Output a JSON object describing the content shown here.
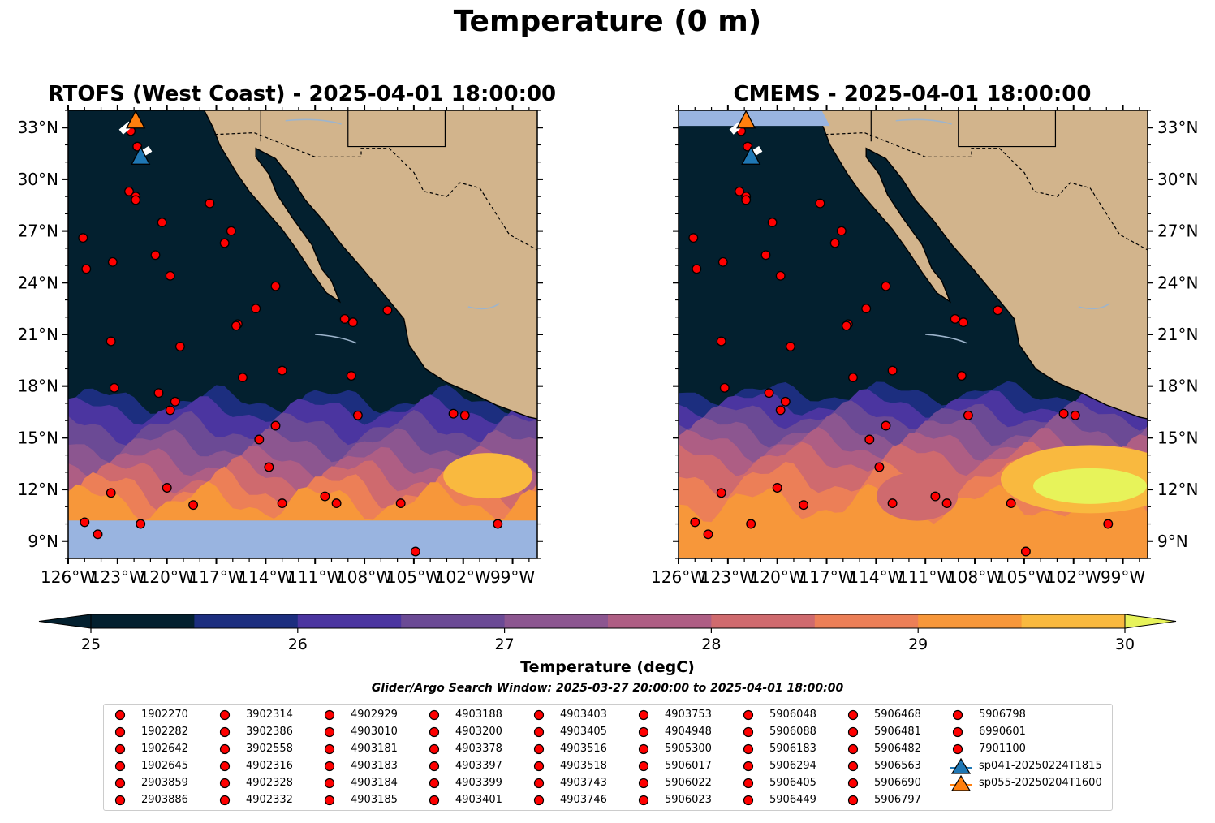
{
  "figure": {
    "title": "Temperature (0 m)",
    "panels": [
      {
        "title": "RTOFS (West Coast) - 2025-04-01 18:00:00"
      },
      {
        "title": "CMEMS - 2025-04-01 18:00:00"
      }
    ],
    "colorbar": {
      "label": "Temperature (degC)",
      "ticks": [
        "25",
        "26",
        "27",
        "28",
        "29",
        "30"
      ],
      "levels": [
        25.0,
        25.5,
        26.0,
        26.5,
        27.0,
        27.5,
        28.0,
        28.5,
        29.0,
        29.5,
        30.0
      ],
      "extend": "both",
      "colors": [
        "#03202f",
        "#1c2e7f",
        "#4b35a0",
        "#6b4a95",
        "#8c5690",
        "#ae5e84",
        "#cf6a6e",
        "#ec7f57",
        "#f7973a",
        "#f9b93f",
        "#e7f35a"
      ]
    },
    "search_window": "Glider/Argo Search Window: 2025-03-27 20:00:00 to 2025-04-01 18:00:00",
    "colors": {
      "land": "#d2b48c",
      "nodata": "#99b4e0",
      "marker_argo": "#ff0000",
      "glider_blue": "#1f77b4",
      "glider_orange": "#ff7f0e"
    }
  },
  "chart_data": [
    {
      "type": "heatmap",
      "panel": "RTOFS (West Coast)",
      "xlabel": "",
      "ylabel": "",
      "xlim": [
        -126,
        -97.5
      ],
      "ylim": [
        8,
        34
      ],
      "x_ticks": [
        "126°W",
        "123°W",
        "120°W",
        "117°W",
        "114°W",
        "111°W",
        "108°W",
        "105°W",
        "102°W",
        "99°W"
      ],
      "y_ticks": [
        "9°N",
        "12°N",
        "15°N",
        "18°N",
        "21°N",
        "24°N",
        "27°N",
        "30°N",
        "33°N"
      ],
      "nodata_south_of": 10.2,
      "temperature_zones": [
        {
          "lat_above": 17.0,
          "temp": "<25"
        },
        {
          "lat_range": [
            14,
            17
          ],
          "temp": "25-26.5"
        },
        {
          "lat_range": [
            12,
            14
          ],
          "temp": "26.5-28"
        },
        {
          "lat_range": [
            10.2,
            12
          ],
          "temp": "28-30"
        }
      ]
    },
    {
      "type": "heatmap",
      "panel": "CMEMS",
      "xlabel": "",
      "ylabel": "",
      "xlim": [
        -126,
        -97.5
      ],
      "ylim": [
        8,
        34
      ],
      "x_ticks": [
        "126°W",
        "123°W",
        "120°W",
        "117°W",
        "114°W",
        "111°W",
        "108°W",
        "105°W",
        "102°W",
        "99°W"
      ],
      "y_ticks": [
        "9°N",
        "12°N",
        "15°N",
        "18°N",
        "21°N",
        "24°N",
        "27°N",
        "30°N",
        "33°N"
      ],
      "nodata_north_of": 33.1,
      "temperature_zones": [
        {
          "lat_above": 17.0,
          "temp": "<25"
        },
        {
          "lat_range": [
            14,
            17
          ],
          "temp": "25-27"
        },
        {
          "lat_range": [
            8,
            14
          ],
          "temp": "27-30+"
        }
      ]
    }
  ],
  "argo_points": [
    [
      -122.2,
      32.8
    ],
    [
      -121.8,
      31.9
    ],
    [
      -122.3,
      29.3
    ],
    [
      -121.9,
      29.0
    ],
    [
      -121.9,
      28.8
    ],
    [
      -125.1,
      26.6
    ],
    [
      -124.9,
      24.8
    ],
    [
      -123.3,
      25.2
    ],
    [
      -120.3,
      27.5
    ],
    [
      -120.7,
      25.6
    ],
    [
      -119.8,
      24.4
    ],
    [
      -117.4,
      28.6
    ],
    [
      -116.1,
      27.0
    ],
    [
      -116.5,
      26.3
    ],
    [
      -113.4,
      23.8
    ],
    [
      -114.6,
      22.5
    ],
    [
      -115.7,
      21.6
    ],
    [
      -115.8,
      21.5
    ],
    [
      -109.2,
      21.9
    ],
    [
      -108.7,
      21.7
    ],
    [
      -106.6,
      22.4
    ],
    [
      -123.4,
      20.6
    ],
    [
      -119.2,
      20.3
    ],
    [
      -115.4,
      18.5
    ],
    [
      -113.0,
      18.9
    ],
    [
      -108.8,
      18.6
    ],
    [
      -123.2,
      17.9
    ],
    [
      -120.5,
      17.6
    ],
    [
      -119.5,
      17.1
    ],
    [
      -119.8,
      16.6
    ],
    [
      -108.4,
      16.3
    ],
    [
      -102.6,
      16.4
    ],
    [
      -101.9,
      16.3
    ],
    [
      -113.4,
      15.7
    ],
    [
      -114.4,
      14.9
    ],
    [
      -113.8,
      13.3
    ],
    [
      -120.0,
      12.1
    ],
    [
      -123.4,
      11.8
    ],
    [
      -118.4,
      11.1
    ],
    [
      -113.0,
      11.2
    ],
    [
      -110.4,
      11.6
    ],
    [
      -109.7,
      11.2
    ],
    [
      -105.8,
      11.2
    ],
    [
      -125.0,
      10.1
    ],
    [
      -124.2,
      9.4
    ],
    [
      -121.6,
      10.0
    ],
    [
      -104.9,
      8.4
    ],
    [
      -99.9,
      10.0
    ]
  ],
  "gliders": [
    {
      "name": "sp041-20250224T1815",
      "lon": -121.6,
      "lat": 31.3,
      "color": "#1f77b4"
    },
    {
      "name": "sp055-20250204T1600",
      "lon": -121.9,
      "lat": 33.4,
      "color": "#ff7f0e"
    }
  ],
  "legend_columns": [
    [
      "1902270",
      "1902282",
      "1902642",
      "1902645",
      "2903859",
      "2903886"
    ],
    [
      "3902314",
      "3902386",
      "3902558",
      "4902316",
      "4902328",
      "4902332"
    ],
    [
      "4902929",
      "4903010",
      "4903181",
      "4903183",
      "4903184",
      "4903185"
    ],
    [
      "4903188",
      "4903200",
      "4903378",
      "4903397",
      "4903399",
      "4903401"
    ],
    [
      "4903403",
      "4903405",
      "4903516",
      "4903518",
      "4903743",
      "4903746"
    ],
    [
      "4903753",
      "4904948",
      "5905300",
      "5906017",
      "5906022",
      "5906023"
    ],
    [
      "5906048",
      "5906088",
      "5906183",
      "5906294",
      "5906405",
      "5906449"
    ],
    [
      "5906468",
      "5906481",
      "5906482",
      "5906563",
      "5906690",
      "5906797"
    ],
    [
      "5906798",
      "6990601",
      "7901100",
      "sp041-20250224T1815",
      "sp055-20250204T1600"
    ]
  ]
}
